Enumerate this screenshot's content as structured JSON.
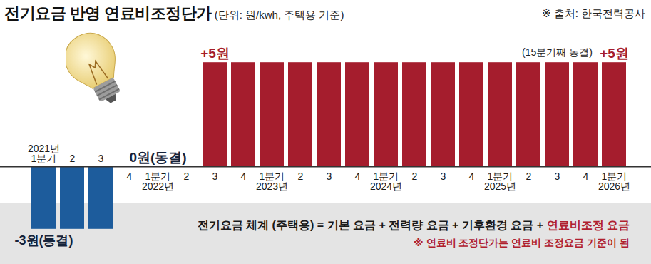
{
  "chart_data": {
    "type": "bar",
    "title": "전기요금 반영 연료비조정단가",
    "subtitle": "(단위: 원/kwh, 주택용 기준)",
    "source": "※ 출처: 한국전력공사",
    "categories": [
      "2021년\n1분기",
      "2",
      "3",
      "4",
      "1분기\n2022년",
      "2",
      "3",
      "4",
      "1분기\n2023년",
      "2",
      "3",
      "4",
      "1분기\n2024년",
      "2",
      "3",
      "4",
      "1분기\n2025년",
      "2",
      "3",
      "4",
      "1분기\n2026년"
    ],
    "values": [
      -3,
      -3,
      -3,
      0,
      0,
      0,
      5,
      5,
      5,
      5,
      5,
      5,
      5,
      5,
      5,
      5,
      5,
      5,
      5,
      5,
      5
    ],
    "colors": [
      "#1d5c9c",
      "#1d5c9c",
      "#1d5c9c",
      "#a51d2d",
      "#a51d2d",
      "#a51d2d",
      "#a51d2d",
      "#a51d2d",
      "#a51d2d",
      "#a51d2d",
      "#a51d2d",
      "#a51d2d",
      "#a51d2d",
      "#a51d2d",
      "#a51d2d",
      "#a51d2d",
      "#a51d2d",
      "#a51d2d",
      "#a51d2d",
      "#a51d2d",
      "#a51d2d"
    ],
    "ylim": [
      -4,
      6
    ],
    "tick_labels": false,
    "grid": false,
    "annotations": [
      {
        "text": "-3원(동결)",
        "category_index": 0
      },
      {
        "text": "0원(동결)",
        "category_index": 4
      },
      {
        "text": "+5원",
        "category_index": 6
      },
      {
        "text": "(15분기째 동결)",
        "category_index": 18
      },
      {
        "text": "+5원",
        "category_index": 20
      }
    ],
    "footer": {
      "formula": "전기요금 체계 (주택용) = 기본 요금 + 전력량 요금 + 기후환경 요금 +",
      "formula_highlight": "연료비조정 요금",
      "note": "※ 연료비 조정단가는 연료비 조정요금 기준이 됨"
    }
  }
}
